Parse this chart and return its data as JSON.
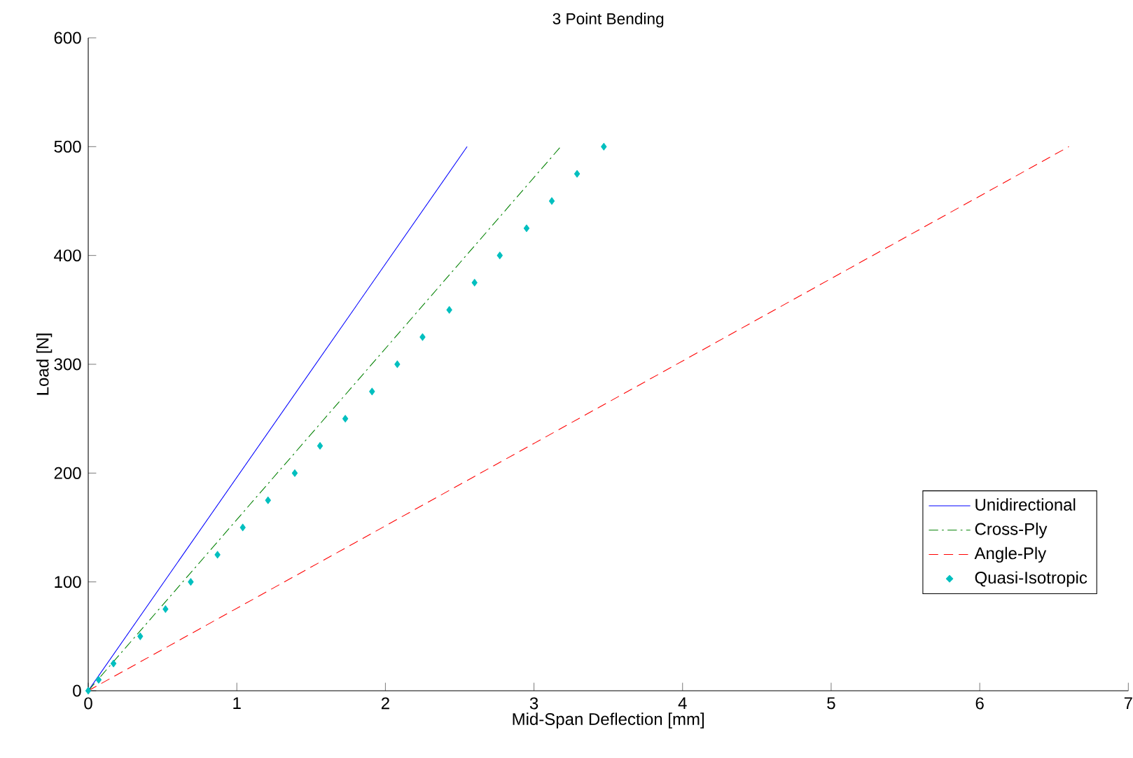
{
  "chart_data": {
    "type": "line",
    "title": "3 Point Bending",
    "xlabel": "Mid-Span Deflection  [mm]",
    "ylabel": "Load  [N]",
    "xlim": [
      0,
      7
    ],
    "ylim": [
      0,
      600
    ],
    "xticks": [
      0,
      1,
      2,
      3,
      4,
      5,
      6,
      7
    ],
    "yticks": [
      0,
      100,
      200,
      300,
      400,
      500,
      600
    ],
    "grid": false,
    "legend": "bottom right",
    "series": [
      {
        "name": "Unidirectional",
        "color": "#0000ff",
        "line_style": "solid",
        "x": [
          0,
          2.55
        ],
        "values": [
          0,
          500
        ]
      },
      {
        "name": "Cross-Ply",
        "color": "#008000",
        "line_style": "dashdot",
        "x": [
          0,
          3.18
        ],
        "values": [
          0,
          500
        ]
      },
      {
        "name": "Angle-Ply",
        "color": "#ff0000",
        "line_style": "dashed",
        "x": [
          0,
          6.6
        ],
        "values": [
          0,
          500
        ]
      },
      {
        "name": "Quasi-Isotropic",
        "color": "#00bfbf",
        "type": "scatter",
        "marker": "diamond",
        "x": [
          0,
          0.07,
          0.17,
          0.35,
          0.52,
          0.69,
          0.87,
          1.04,
          1.21,
          1.39,
          1.56,
          1.73,
          1.91,
          2.08,
          2.25,
          2.43,
          2.6,
          2.77,
          2.95,
          3.12,
          3.29,
          3.47
        ],
        "values": [
          0,
          10,
          25,
          50,
          75,
          100,
          125,
          150,
          175,
          200,
          225,
          250,
          275,
          300,
          325,
          350,
          375,
          400,
          425,
          450,
          475,
          500
        ]
      }
    ]
  }
}
